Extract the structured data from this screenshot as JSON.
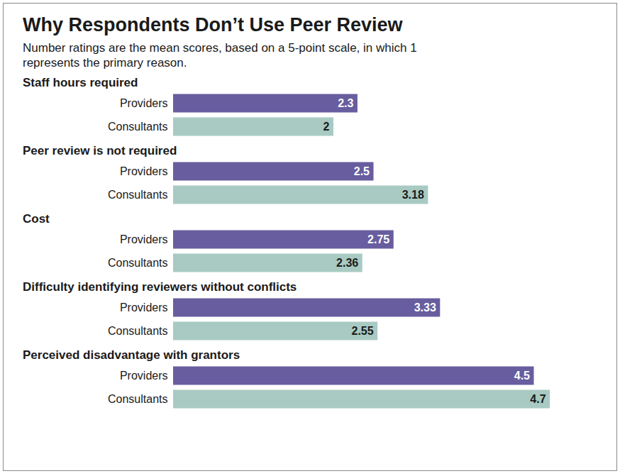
{
  "chart_data": {
    "type": "bar",
    "orientation": "horizontal",
    "title": "Why Respondents Don’t Use Peer Review",
    "subtitle": "Number ratings are the mean scores, based on a 5-point scale, in which 1 represents the primary reason.",
    "categories": [
      "Staff hours required",
      "Peer review is not required",
      "Cost",
      "Difficulty identifying reviewers without conflicts",
      "Perceived disadvantage with grantors"
    ],
    "series": [
      {
        "name": "Providers",
        "color": "#675d9f",
        "values": [
          2.3,
          2.5,
          2.75,
          3.33,
          4.5
        ]
      },
      {
        "name": "Consultants",
        "color": "#a8cac2",
        "values": [
          2,
          3.18,
          2.36,
          2.55,
          4.7
        ]
      }
    ],
    "xlim": [
      0,
      5
    ],
    "xticks": [],
    "tick_labels": false,
    "data_labels": true
  }
}
